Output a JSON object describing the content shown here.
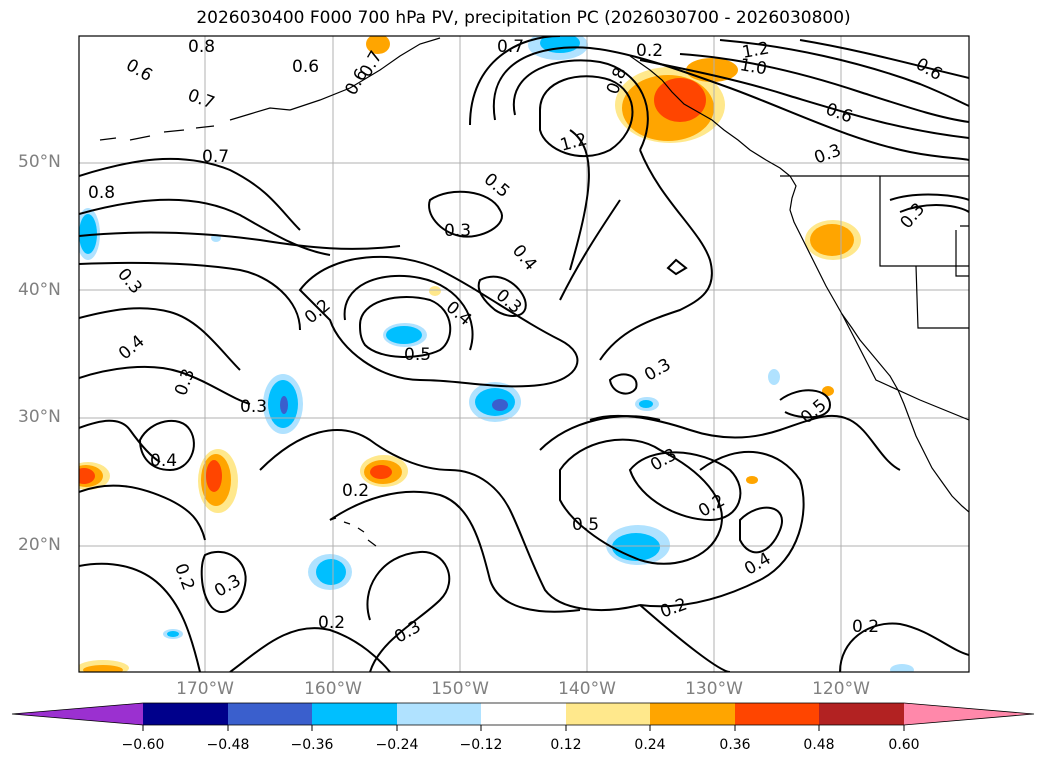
{
  "title": "2026030400 F000 700 hPa PV, precipitation PC (2026030700 - 2026030800)",
  "lat_labels": [
    "50°N",
    "40°N",
    "30°N",
    "20°N"
  ],
  "lon_labels": [
    "170°W",
    "160°W",
    "150°W",
    "140°W",
    "130°W",
    "120°W"
  ],
  "colorbar": {
    "ticks": [
      "−0.60",
      "−0.48",
      "−0.36",
      "−0.24",
      "−0.12",
      "0.12",
      "0.24",
      "0.36",
      "0.48",
      "0.60"
    ],
    "colors": [
      "#9b30d0",
      "#00008b",
      "#3a5fcd",
      "#00bfff",
      "#b0e2ff",
      "#ffffff",
      "#ffe88c",
      "#ffa500",
      "#ff4500",
      "#b22222",
      "#ff88aa"
    ]
  },
  "contour_labels": [
    "0.8",
    "0.6",
    "0.6",
    "0.7",
    "0.7",
    "0.6",
    "0.7",
    "0.8",
    "1.0",
    "1.2",
    "1.2",
    "0.6",
    "0.3",
    "0.7",
    "0.8",
    "0.3",
    "0.5",
    "0.4",
    "0.3",
    "0.3",
    "0.2",
    "0.4",
    "0.3",
    "0.5",
    "0.4",
    "0.3",
    "0.3",
    "0.4",
    "0.2",
    "0.3",
    "0.2",
    "0.5",
    "0.2",
    "0.3",
    "0.4",
    "0.5",
    "0.2",
    "0.2",
    "0.3",
    "0.2",
    "0.3",
    "0.2",
    "0.6"
  ]
}
